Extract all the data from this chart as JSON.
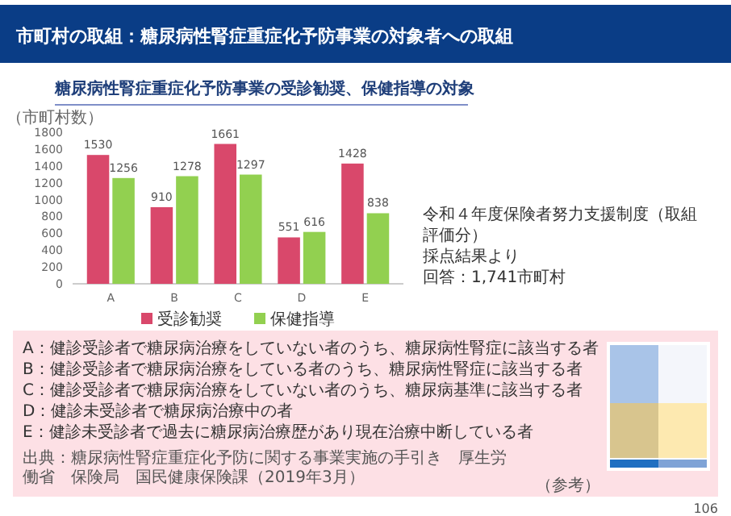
{
  "chart_data": {
    "type": "bar",
    "title": "市町村の取組：糖尿病性腎症重症化予防事業の対象者への取組",
    "subtitle": "糖尿病性腎症重症化予防事業の受診勧奨、保健指導の対象",
    "ylabel": "（市町村数）",
    "categories": [
      "A",
      "B",
      "C",
      "D",
      "E"
    ],
    "series": [
      {
        "name": "受診勧奨",
        "color": "#d9486b",
        "values": [
          1530,
          910,
          1661,
          551,
          1428
        ]
      },
      {
        "name": "保健指導",
        "color": "#92d050",
        "values": [
          1256,
          1278,
          1297,
          616,
          838
        ]
      }
    ],
    "ylim": [
      0,
      1800
    ],
    "yticks": [
      0,
      200,
      400,
      600,
      800,
      1000,
      1200,
      1400,
      1600,
      1800
    ],
    "grid": false,
    "data_labels": true,
    "legend": "bottom",
    "annotations": [
      "令和４年度保険者努力支援制度（取組評価分）",
      "採点結果より",
      "回答：1,741市町村",
      "A：健診受診者で糖尿病治療をしていない者のうち、糖尿病性腎症に該当する者",
      "B：健診受診者で糖尿病治療をしている者のうち、糖尿病性腎症に該当する者",
      "C：健診受診者で糖尿病治療をしていない者のうち、糖尿病基準に該当する者",
      "D：健診未受診者で糖尿病治療中の者",
      "E：健診未受診者で過去に糖尿病治療歴があり現在治療中断している者",
      "出典：糖尿病性腎症重症化予防に関する事業実施の手引き　厚生労働省　保険局　国民健康保険課（2019年3月）",
      "（参考）",
      "106"
    ]
  }
}
